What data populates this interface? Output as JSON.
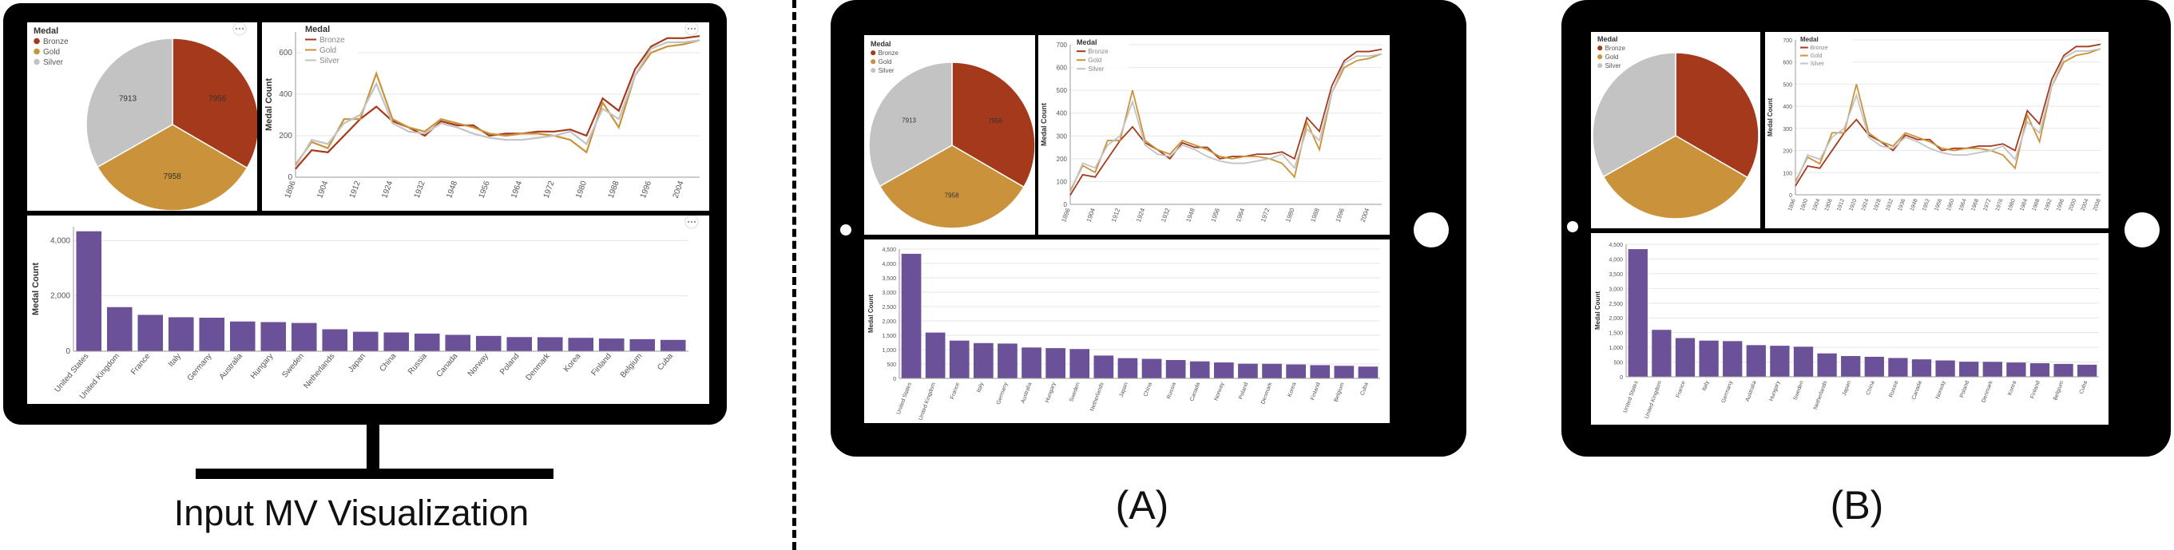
{
  "captions": {
    "input": "Input MV Visualization",
    "a": "(A)",
    "b": "(B)"
  },
  "colors": {
    "bronze": "#a4391b",
    "gold": "#c9923b",
    "silver": "#c3c3c3",
    "bar": "#6b5198",
    "frame": "#000000"
  },
  "icons": [
    "more-options-icon",
    "camera-icon",
    "home-button-icon"
  ],
  "chart_data": [
    {
      "type": "pie",
      "legend_title": "Medal",
      "legend": "top-left",
      "categories": [
        "Bronze",
        "Gold",
        "Silver"
      ],
      "values": [
        7956,
        7958,
        7913
      ],
      "labels": [
        "7956",
        "7958",
        "7913"
      ]
    },
    {
      "type": "line",
      "legend_title": "Medal",
      "legend": "top-left",
      "ylabel": "Medal Count",
      "xlabel": "",
      "ylim": [
        0,
        700
      ],
      "yticks": [
        0,
        200,
        400,
        600
      ],
      "yticks_ab": [
        0,
        100,
        200,
        300,
        400,
        500,
        600,
        700
      ],
      "x": [
        1896,
        1900,
        1904,
        1908,
        1912,
        1920,
        1924,
        1928,
        1932,
        1936,
        1948,
        1952,
        1956,
        1960,
        1964,
        1968,
        1972,
        1976,
        1980,
        1984,
        1988,
        1992,
        1996,
        2000,
        2004,
        2008
      ],
      "series": [
        {
          "name": "Bronze",
          "values": [
            40,
            130,
            120,
            200,
            280,
            340,
            270,
            240,
            200,
            270,
            250,
            250,
            200,
            210,
            210,
            220,
            220,
            230,
            200,
            380,
            320,
            520,
            630,
            670,
            670,
            680
          ]
        },
        {
          "name": "Gold",
          "values": [
            60,
            170,
            140,
            280,
            280,
            500,
            280,
            240,
            220,
            280,
            260,
            240,
            210,
            200,
            210,
            210,
            200,
            180,
            120,
            360,
            240,
            490,
            600,
            630,
            640,
            660
          ]
        },
        {
          "name": "Silver",
          "values": [
            50,
            180,
            160,
            260,
            300,
            450,
            260,
            220,
            210,
            260,
            240,
            210,
            190,
            180,
            180,
            190,
            200,
            220,
            160,
            330,
            280,
            490,
            620,
            650,
            650,
            660
          ]
        }
      ]
    },
    {
      "type": "bar",
      "ylabel": "Medal Count",
      "xlabel": "",
      "ylim": [
        0,
        4500
      ],
      "yticks": [
        0,
        2000,
        4000
      ],
      "ytick_labels": [
        "0",
        "2,000",
        "4,000"
      ],
      "yticks_ab": [
        0,
        500,
        1000,
        1500,
        2000,
        2500,
        3000,
        3500,
        4000,
        4500
      ],
      "ytick_labels_ab": [
        "0",
        "500",
        "1,000",
        "1,500",
        "2,000",
        "2,500",
        "3,000",
        "3,500",
        "4,000",
        "4,500"
      ],
      "categories": [
        "United States",
        "United Kingdom",
        "France",
        "Italy",
        "Germany",
        "Australia",
        "Hungary",
        "Sweden",
        "Netherlands",
        "Japan",
        "China",
        "Russia",
        "Canada",
        "Norway",
        "Poland",
        "Denmark",
        "Korea",
        "Finland",
        "Belgium",
        "Cuba"
      ],
      "values": [
        4335,
        1594,
        1314,
        1228,
        1211,
        1075,
        1053,
        1021,
        794,
        704,
        679,
        638,
        592,
        554,
        511,
        507,
        484,
        460,
        437,
        410
      ]
    }
  ]
}
